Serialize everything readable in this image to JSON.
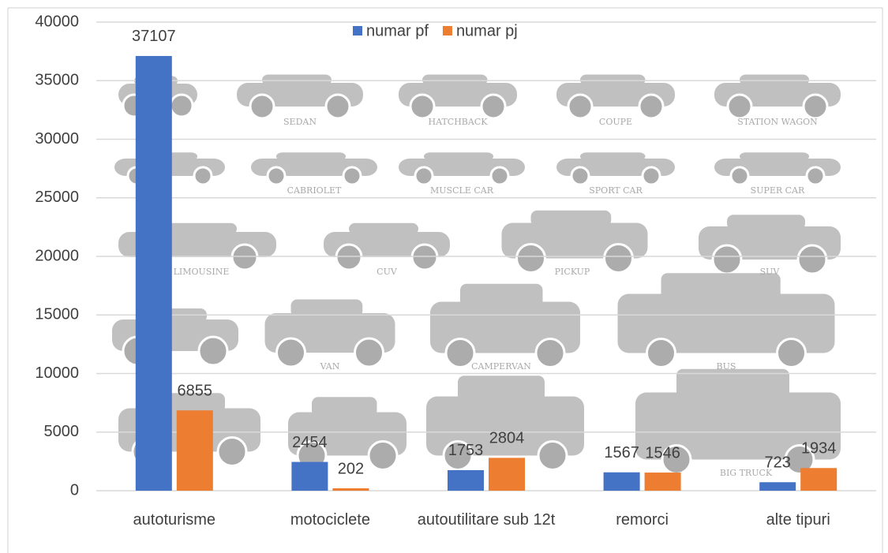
{
  "chart_data": {
    "type": "bar",
    "categories": [
      "autoturisme",
      "motociclete",
      "autoutilitare sub 12t",
      "remorci",
      "alte tipuri"
    ],
    "series": [
      {
        "name": "numar pf",
        "color": "#4472c4",
        "values": [
          37107,
          2454,
          1753,
          1567,
          723
        ]
      },
      {
        "name": "numar pj",
        "color": "#ed7d31",
        "values": [
          6855,
          202,
          2804,
          1546,
          1934
        ]
      }
    ],
    "ylim": [
      0,
      40000
    ],
    "yticks": [
      0,
      5000,
      10000,
      15000,
      20000,
      25000,
      30000,
      35000,
      40000
    ],
    "grid": true,
    "legend": "top",
    "background_labels": [
      "SEDAN",
      "HATCHBACK",
      "COUPE",
      "STATION WAGON",
      "CABRIOLET",
      "MUSCLE CAR",
      "SPORT CAR",
      "SUPER CAR",
      "LIMOUSINE",
      "CUV",
      "PICKUP",
      "SUV",
      "VAN",
      "CAMPERVAN",
      "BUS",
      "BIG TRUCK"
    ]
  }
}
